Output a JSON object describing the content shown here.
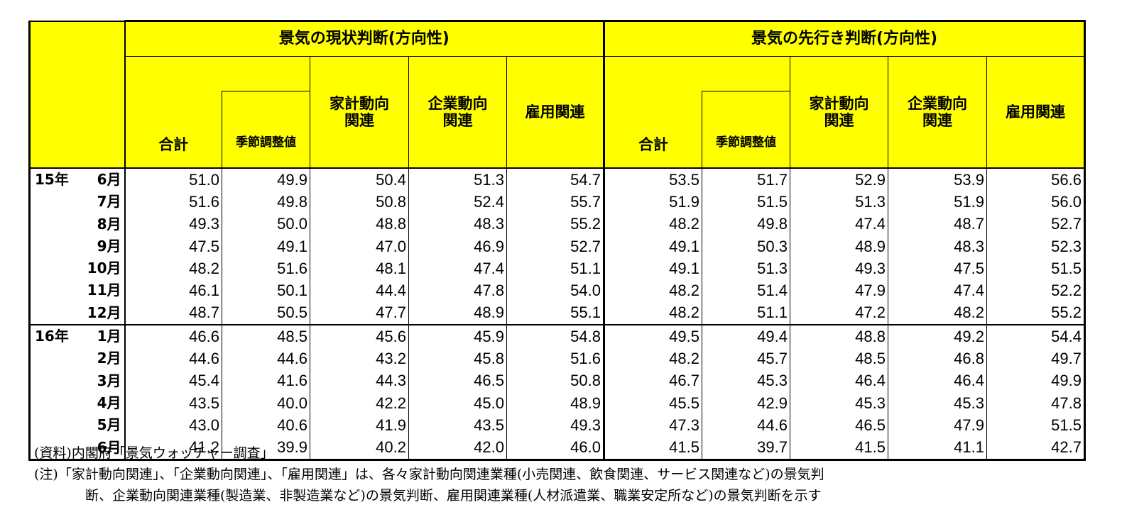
{
  "header": {
    "current_title": "景気の現状判断(方向性)",
    "future_title": "景気の先行き判断(方向性)",
    "total": "合計",
    "seasonal": "季節調整値",
    "household_line1": "家計動向",
    "household_line2": "関連",
    "corporate_line1": "企業動向",
    "corporate_line2": "関連",
    "employment": "雇用関連"
  },
  "rows": [
    {
      "year": "15年",
      "month": "6月",
      "values": [
        "51.0",
        "49.9",
        "50.4",
        "51.3",
        "54.7",
        "53.5",
        "51.7",
        "52.9",
        "53.9",
        "56.6"
      ]
    },
    {
      "year": "",
      "month": "7月",
      "values": [
        "51.6",
        "49.8",
        "50.8",
        "52.4",
        "55.7",
        "51.9",
        "51.5",
        "51.3",
        "51.9",
        "56.0"
      ]
    },
    {
      "year": "",
      "month": "8月",
      "values": [
        "49.3",
        "50.0",
        "48.8",
        "48.3",
        "55.2",
        "48.2",
        "49.8",
        "47.4",
        "48.7",
        "52.7"
      ]
    },
    {
      "year": "",
      "month": "9月",
      "values": [
        "47.5",
        "49.1",
        "47.0",
        "46.9",
        "52.7",
        "49.1",
        "50.3",
        "48.9",
        "48.3",
        "52.3"
      ]
    },
    {
      "year": "",
      "month": "10月",
      "values": [
        "48.2",
        "51.6",
        "48.1",
        "47.4",
        "51.1",
        "49.1",
        "51.3",
        "49.3",
        "47.5",
        "51.5"
      ]
    },
    {
      "year": "",
      "month": "11月",
      "values": [
        "46.1",
        "50.1",
        "44.4",
        "47.8",
        "54.0",
        "48.2",
        "51.4",
        "47.9",
        "47.4",
        "52.2"
      ]
    },
    {
      "year": "",
      "month": "12月",
      "values": [
        "48.7",
        "50.5",
        "47.7",
        "48.9",
        "55.1",
        "48.2",
        "51.1",
        "47.2",
        "48.2",
        "55.2"
      ]
    },
    {
      "year": "16年",
      "month": "1月",
      "values": [
        "46.6",
        "48.5",
        "45.6",
        "45.9",
        "54.8",
        "49.5",
        "49.4",
        "48.8",
        "49.2",
        "54.4"
      ]
    },
    {
      "year": "",
      "month": "2月",
      "values": [
        "44.6",
        "44.6",
        "43.2",
        "45.8",
        "51.6",
        "48.2",
        "45.7",
        "48.5",
        "46.8",
        "49.7"
      ]
    },
    {
      "year": "",
      "month": "3月",
      "values": [
        "45.4",
        "41.6",
        "44.3",
        "46.5",
        "50.8",
        "46.7",
        "45.3",
        "46.4",
        "46.4",
        "49.9"
      ]
    },
    {
      "year": "",
      "month": "4月",
      "values": [
        "43.5",
        "40.0",
        "42.2",
        "45.0",
        "48.9",
        "45.5",
        "42.9",
        "45.3",
        "45.3",
        "47.8"
      ]
    },
    {
      "year": "",
      "month": "5月",
      "values": [
        "43.0",
        "40.6",
        "41.9",
        "43.5",
        "49.3",
        "47.3",
        "44.6",
        "46.5",
        "47.9",
        "51.5"
      ]
    },
    {
      "year": "",
      "month": "6月",
      "values": [
        "41.2",
        "39.9",
        "40.2",
        "42.0",
        "46.0",
        "41.5",
        "39.7",
        "41.5",
        "41.1",
        "42.7"
      ]
    }
  ],
  "notes": {
    "source": "(資料)内閣府「景気ウォッチャー調査」",
    "note_line1": "(注)「家計動向関連」、「企業動向関連」、「雇用関連」は、各々家計動向関連業種(小売関連、飲食関連、サービス関連など)の景気判",
    "note_line2": "断、企業動向関連業種(製造業、非製造業など)の景気判断、雇用関連業種(人材派遣業、職業安定所など)の景気判断を示す"
  },
  "colors": {
    "header_bg": "#ffff00",
    "border": "#000000"
  }
}
